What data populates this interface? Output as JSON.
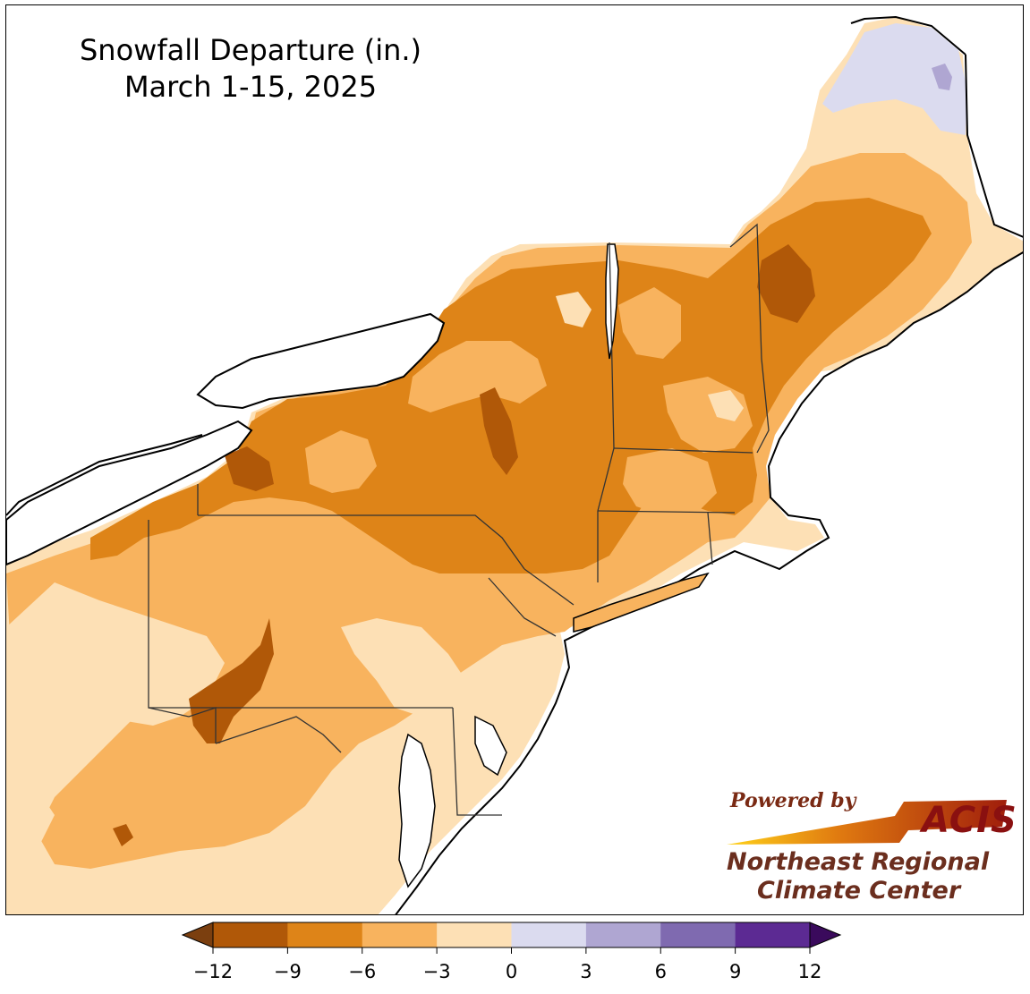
{
  "title": {
    "line1": "Snowfall Departure (in.)",
    "line2": "March 1-15, 2025"
  },
  "logo": {
    "powered_by": "Powered by",
    "acis": "ACIS",
    "org_line1": "Northeast Regional",
    "org_line2": "Climate Center"
  },
  "legend": {
    "ticks": [
      "−12",
      "−9",
      "−6",
      "−3",
      "0",
      "3",
      "6",
      "9",
      "12"
    ],
    "bins": [
      {
        "range": "< -12",
        "color": "#7b3f0f"
      },
      {
        "range": "-12 to -9",
        "color": "#b05808"
      },
      {
        "range": "-9 to -6",
        "color": "#de8418"
      },
      {
        "range": "-6 to -3",
        "color": "#f8b35e"
      },
      {
        "range": "-3 to 0",
        "color": "#fde0b5"
      },
      {
        "range": "0 to 3",
        "color": "#dbdbef"
      },
      {
        "range": "3 to 6",
        "color": "#afa6d2"
      },
      {
        "range": "6 to 9",
        "color": "#7f6ab0"
      },
      {
        "range": "9 to 12",
        "color": "#5c2a93"
      },
      {
        "range": "> 12",
        "color": "#3a0a5c"
      }
    ]
  },
  "map": {
    "region": "Northeast United States",
    "colors": {
      "water": "#ffffff",
      "level_m12": "#b05808",
      "level_m9": "#de8418",
      "level_m6": "#f8b35e",
      "level_m3": "#fde0b5",
      "level_p0": "#dbdbef",
      "level_p3": "#afa6d2",
      "border": "#000000"
    }
  }
}
